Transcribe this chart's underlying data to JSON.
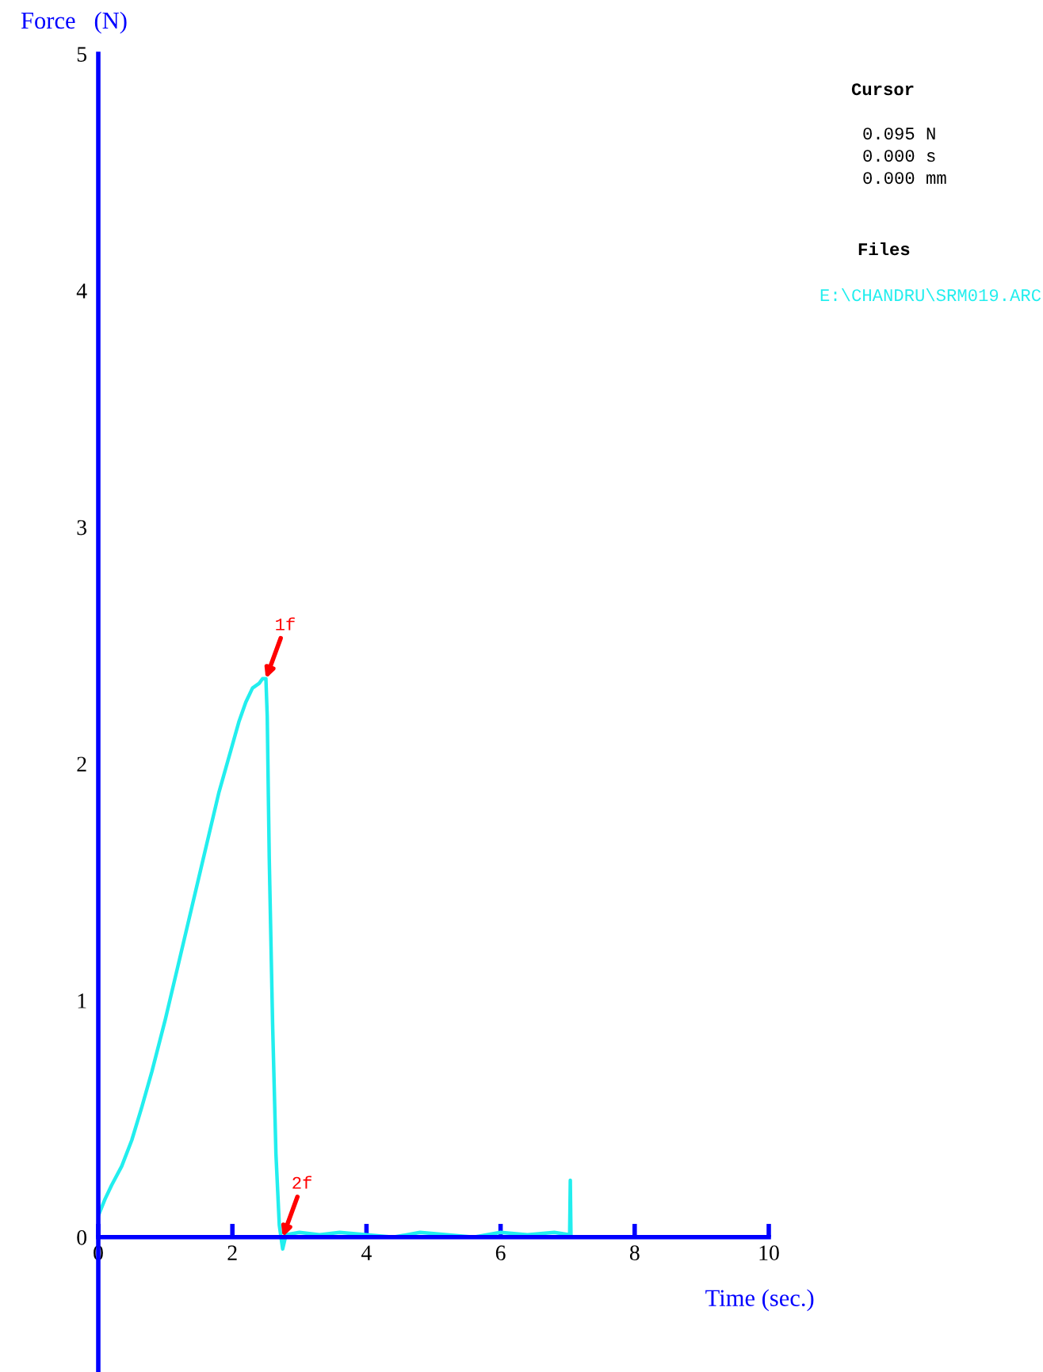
{
  "chart_data": {
    "type": "line",
    "xlabel": "Time (sec.)",
    "ylabel": "Force   (N)",
    "xlim": [
      0,
      10
    ],
    "ylim": [
      -0.57,
      5
    ],
    "xticks": [
      0,
      2,
      4,
      6,
      8,
      10
    ],
    "yticks": [
      0,
      1,
      2,
      3,
      4,
      5
    ],
    "grid": false,
    "legend": false,
    "marker": "none",
    "line_style": "solid",
    "series": [
      {
        "color": "#22eeee",
        "x": [
          0,
          0.1,
          0.2,
          0.35,
          0.5,
          0.65,
          0.8,
          1.0,
          1.2,
          1.4,
          1.5,
          1.6,
          1.8,
          2.0,
          2.1,
          2.2,
          2.3,
          2.4,
          2.45,
          2.5,
          2.52,
          2.55,
          2.6,
          2.65,
          2.7,
          2.75,
          2.8,
          3.0,
          3.3,
          3.6,
          4.0,
          4.4,
          4.8,
          5.2,
          5.6,
          6.0,
          6.4,
          6.8,
          7.03,
          7.04,
          7.05
        ],
        "values": [
          0.09,
          0.16,
          0.22,
          0.3,
          0.41,
          0.55,
          0.7,
          0.92,
          1.16,
          1.4,
          1.52,
          1.64,
          1.88,
          2.08,
          2.18,
          2.26,
          2.32,
          2.34,
          2.36,
          2.36,
          2.2,
          1.6,
          0.9,
          0.35,
          0.05,
          -0.05,
          0.01,
          0.02,
          0.01,
          0.02,
          0.01,
          0.0,
          0.02,
          0.01,
          0.0,
          0.02,
          0.01,
          0.02,
          0.01,
          0.24,
          0.0
        ]
      }
    ],
    "annotations": [
      {
        "text": "1f",
        "x": 2.5,
        "y": 2.36
      },
      {
        "text": "2f",
        "x": 2.75,
        "y": 0
      },
      "Cursor",
      "0.095 N",
      "0.000 s",
      "0.000 mm",
      "Files",
      "E:\\CHANDRU\\SRM019.ARC"
    ]
  }
}
